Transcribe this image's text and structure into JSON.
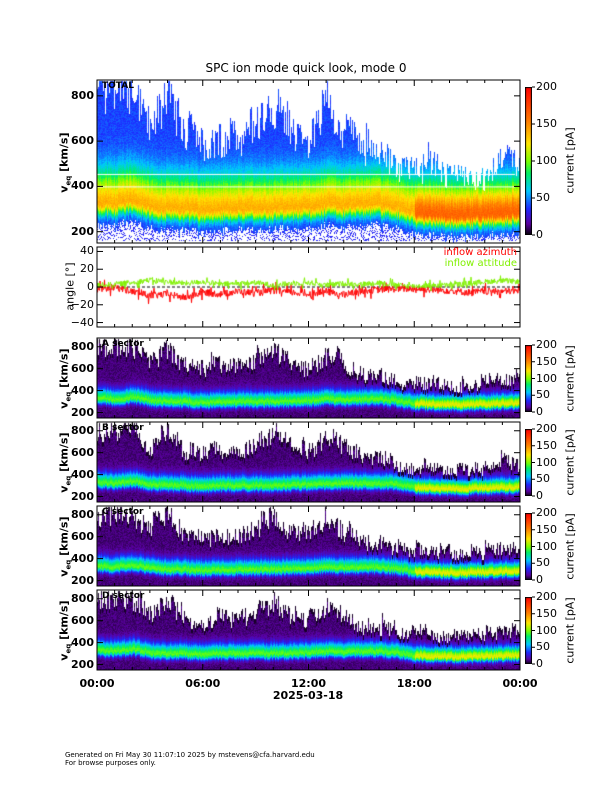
{
  "chart_data": {
    "type": "heatmap",
    "title": "SPC ion mode quick look, mode 0",
    "xlabel": "2025-03-18",
    "xticks": [
      "00:00",
      "06:00",
      "12:00",
      "18:00",
      "00:00"
    ],
    "xrange_hours": [
      0,
      24
    ],
    "panels": [
      {
        "label": "TOTAL",
        "ylabel": "v",
        "ylabel_sub": "eq",
        "ylabel_unit": "[km/s]",
        "yticks": [
          "200",
          "400",
          "600",
          "800"
        ],
        "ylim": [
          150,
          870
        ],
        "colorbar": {
          "label": "current [pA]",
          "ticks": [
            "0",
            "50",
            "100",
            "150",
            "200"
          ],
          "range": [
            0,
            200
          ]
        }
      },
      {
        "label": "",
        "ylabel": "angle [°]",
        "yticks": [
          "−40",
          "−20",
          "0",
          "20",
          "40"
        ],
        "ylim": [
          -45,
          45
        ],
        "legend": [
          {
            "name": "inflow azimuth",
            "color": "#ff0000"
          },
          {
            "name": "inflow attitude",
            "color": "#80f000"
          }
        ]
      },
      {
        "label": "A sector",
        "ylabel": "v",
        "ylabel_sub": "eq",
        "ylabel_unit": "[km/s]",
        "yticks": [
          "200",
          "400",
          "600",
          "800"
        ],
        "ylim": [
          150,
          880
        ],
        "colorbar": {
          "label": "current [pA]",
          "ticks": [
            "0",
            "50",
            "100",
            "150",
            "200"
          ],
          "range": [
            0,
            200
          ]
        }
      },
      {
        "label": "B sector",
        "ylabel": "v",
        "ylabel_sub": "eq",
        "ylabel_unit": "[km/s]",
        "yticks": [
          "200",
          "400",
          "600",
          "800"
        ],
        "ylim": [
          150,
          880
        ],
        "colorbar": {
          "label": "current [pA]",
          "ticks": [
            "0",
            "50",
            "100",
            "150",
            "200"
          ],
          "range": [
            0,
            200
          ]
        }
      },
      {
        "label": "C sector",
        "ylabel": "v",
        "ylabel_sub": "eq",
        "ylabel_unit": "[km/s]",
        "yticks": [
          "200",
          "400",
          "600",
          "800"
        ],
        "ylim": [
          150,
          880
        ],
        "colorbar": {
          "label": "current [pA]",
          "ticks": [
            "0",
            "50",
            "100",
            "150",
            "200"
          ],
          "range": [
            0,
            200
          ]
        }
      },
      {
        "label": "D sector",
        "ylabel": "v",
        "ylabel_sub": "eq",
        "ylabel_unit": "[km/s]",
        "yticks": [
          "200",
          "400",
          "600",
          "800"
        ],
        "ylim": [
          150,
          880
        ],
        "colorbar": {
          "label": "current [pA]",
          "ticks": [
            "0",
            "50",
            "100",
            "150",
            "200"
          ],
          "range": [
            0,
            200
          ]
        }
      }
    ],
    "hourly_core_speed_kms": [
      330,
      320,
      340,
      310,
      300,
      300,
      290,
      300,
      300,
      300,
      300,
      305,
      310,
      320,
      315,
      320,
      320,
      310,
      280,
      275,
      270,
      270,
      275,
      280,
      285
    ],
    "hourly_max_speed_kms": [
      870,
      870,
      870,
      700,
      860,
      650,
      620,
      660,
      640,
      720,
      820,
      700,
      640,
      780,
      690,
      590,
      570,
      520,
      490,
      490,
      480,
      470,
      470,
      540,
      520
    ],
    "hourly_inflow_azimuth_deg": [
      -3,
      0,
      -5,
      -10,
      -8,
      -12,
      -6,
      -8,
      -5,
      -7,
      -4,
      -6,
      -8,
      -5,
      -9,
      -4,
      -3,
      -2,
      -2,
      -3,
      -4,
      -6,
      -5,
      -5,
      -4
    ],
    "hourly_inflow_attitude_deg": [
      2,
      3,
      5,
      8,
      6,
      4,
      6,
      3,
      4,
      5,
      2,
      4,
      5,
      2,
      4,
      3,
      5,
      2,
      1,
      2,
      2,
      4,
      6,
      7,
      6
    ]
  },
  "footer": {
    "line1": "Generated on Fri May 30 11:07:10 2025 by mstevens@cfa.harvard.edu",
    "line2": "For browse purposes only."
  }
}
